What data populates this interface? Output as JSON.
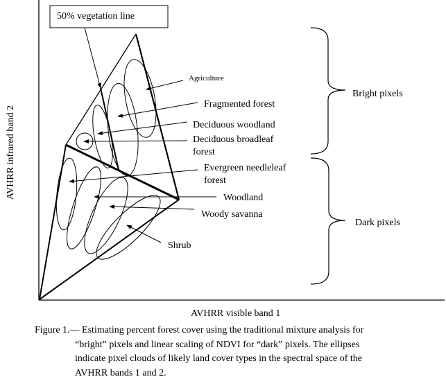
{
  "box_label": "50% vegetation line",
  "axes": {
    "x_label": "AVHRR visible band 1",
    "y_label": "AVHRR infrared band 2"
  },
  "land_cover_labels": [
    {
      "id": "agriculture",
      "lines": [
        "Agriculture"
      ]
    },
    {
      "id": "fragmented-forest",
      "lines": [
        "Fragmented forest"
      ]
    },
    {
      "id": "deciduous-woodland",
      "lines": [
        "Deciduous woodland"
      ]
    },
    {
      "id": "deciduous-broadleaf-forest",
      "lines": [
        "Deciduous broadleaf",
        "forest"
      ]
    },
    {
      "id": "evergreen-needleleaf-forest",
      "lines": [
        "Evergreen needleleaf",
        "forest"
      ]
    },
    {
      "id": "woodland",
      "lines": [
        "Woodland"
      ]
    },
    {
      "id": "woody-savanna",
      "lines": [
        "Woody savanna"
      ]
    },
    {
      "id": "shrub",
      "lines": [
        "Shrub"
      ]
    }
  ],
  "groups": {
    "bright": "Bright pixels",
    "dark": "Dark pixels"
  },
  "caption": {
    "lines": [
      "Figure 1.— Estimating percent forest cover using the traditional mixture analysis for",
      "“bright” pixels and linear scaling of NDVI for “dark” pixels.  The ellipses",
      "indicate pixel clouds of likely land cover types in the spectral space of the",
      "AVHRR bands 1 and 2."
    ]
  }
}
